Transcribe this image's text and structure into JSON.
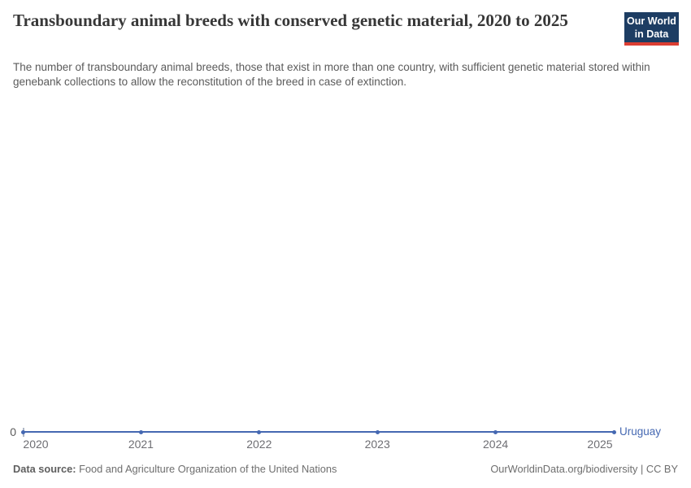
{
  "header": {
    "title": "Transboundary animal breeds with conserved genetic material, 2020 to 2025",
    "subtitle": "The number of transboundary animal breeds, those that exist in more than one country, with sufficient genetic material stored within genebank collections to allow the reconstitution of the breed in case of extinction.",
    "logo": {
      "line1": "Our World",
      "line2": "in Data",
      "bg_color": "#1d3d63",
      "stripe_color": "#dc3e32"
    }
  },
  "chart_data": {
    "type": "line",
    "title": "Transboundary animal breeds with conserved genetic material, 2020 to 2025",
    "x": [
      2020,
      2021,
      2022,
      2023,
      2024,
      2025
    ],
    "x_tick_labels": [
      "2020",
      "2021",
      "2022",
      "2023",
      "2024",
      "2025"
    ],
    "series": [
      {
        "name": "Uruguay",
        "values": [
          0,
          0,
          0,
          0,
          0,
          0
        ],
        "color": "#4568b2"
      }
    ],
    "xlim": [
      2020,
      2025
    ],
    "ylim": [
      0,
      0
    ],
    "y_tick_label": "0",
    "grid": false,
    "legend_position": "end-of-line",
    "xlabel": "",
    "ylabel": ""
  },
  "footer": {
    "source_label": "Data source:",
    "source_text": " Food and Agriculture Organization of the United Nations",
    "right_text": "OurWorldinData.org/biodiversity | CC BY"
  }
}
